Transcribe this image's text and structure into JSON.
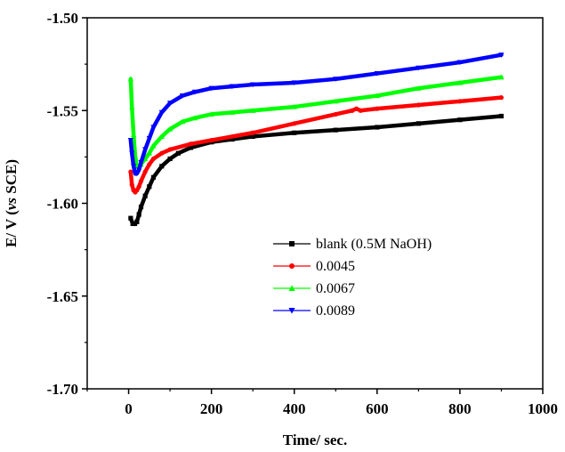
{
  "chart_data": {
    "type": "line",
    "xlabel": "Time/ sec.",
    "ylabel_parts": [
      "E/ V (",
      "vs",
      " SCE)"
    ],
    "xlim": [
      -100,
      1000
    ],
    "ylim": [
      -1.7,
      -1.5
    ],
    "x_ticks": [
      0,
      200,
      400,
      600,
      800,
      1000
    ],
    "x_tick_labels": [
      "0",
      "200",
      "400",
      "600",
      "800",
      "1000"
    ],
    "y_ticks": [
      -1.7,
      -1.65,
      -1.6,
      -1.55,
      -1.5
    ],
    "y_tick_labels": [
      "-1.70",
      "-1.65",
      "-1.60",
      "-1.55",
      "-1.50"
    ],
    "grid": false,
    "legend_position": "center-right",
    "series": [
      {
        "name": "blank (0.5M NaOH)",
        "color": "#000000",
        "marker": "square",
        "x": [
          5,
          10,
          15,
          20,
          25,
          30,
          40,
          50,
          60,
          80,
          100,
          120,
          150,
          200,
          250,
          300,
          400,
          500,
          600,
          700,
          800,
          900
        ],
        "y": [
          -1.608,
          -1.611,
          -1.611,
          -1.61,
          -1.606,
          -1.602,
          -1.596,
          -1.591,
          -1.586,
          -1.58,
          -1.576,
          -1.573,
          -1.57,
          -1.567,
          -1.5655,
          -1.564,
          -1.562,
          -1.5605,
          -1.559,
          -1.557,
          -1.555,
          -1.553
        ]
      },
      {
        "name": "0.0045",
        "color": "#ff0000",
        "marker": "circle",
        "x": [
          5,
          8,
          12,
          16,
          20,
          25,
          30,
          40,
          50,
          60,
          80,
          100,
          150,
          200,
          300,
          400,
          500,
          540,
          550,
          560,
          600,
          700,
          800,
          900
        ],
        "y": [
          -1.583,
          -1.59,
          -1.593,
          -1.594,
          -1.593,
          -1.591,
          -1.588,
          -1.583,
          -1.579,
          -1.576,
          -1.573,
          -1.571,
          -1.568,
          -1.566,
          -1.562,
          -1.557,
          -1.552,
          -1.55,
          -1.549,
          -1.55,
          -1.549,
          -1.547,
          -1.545,
          -1.543
        ]
      },
      {
        "name": "0.0067",
        "color": "#00ff00",
        "marker": "triangle-up",
        "x": [
          5,
          8,
          12,
          16,
          20,
          25,
          30,
          40,
          50,
          60,
          80,
          100,
          130,
          160,
          200,
          250,
          300,
          400,
          500,
          600,
          700,
          800,
          900
        ],
        "y": [
          -1.533,
          -1.548,
          -1.563,
          -1.575,
          -1.58,
          -1.58,
          -1.579,
          -1.576,
          -1.573,
          -1.569,
          -1.564,
          -1.56,
          -1.556,
          -1.554,
          -1.552,
          -1.551,
          -1.55,
          -1.548,
          -1.545,
          -1.542,
          -1.538,
          -1.535,
          -1.532
        ]
      },
      {
        "name": "0.0089",
        "color": "#0000ff",
        "marker": "triangle-down",
        "x": [
          5,
          8,
          12,
          16,
          20,
          25,
          30,
          40,
          50,
          60,
          80,
          100,
          130,
          160,
          200,
          250,
          300,
          400,
          500,
          600,
          700,
          800,
          900
        ],
        "y": [
          -1.566,
          -1.573,
          -1.58,
          -1.584,
          -1.584,
          -1.582,
          -1.578,
          -1.571,
          -1.565,
          -1.559,
          -1.551,
          -1.546,
          -1.542,
          -1.54,
          -1.538,
          -1.537,
          -1.536,
          -1.535,
          -1.533,
          -1.53,
          -1.527,
          -1.524,
          -1.52
        ]
      }
    ]
  }
}
